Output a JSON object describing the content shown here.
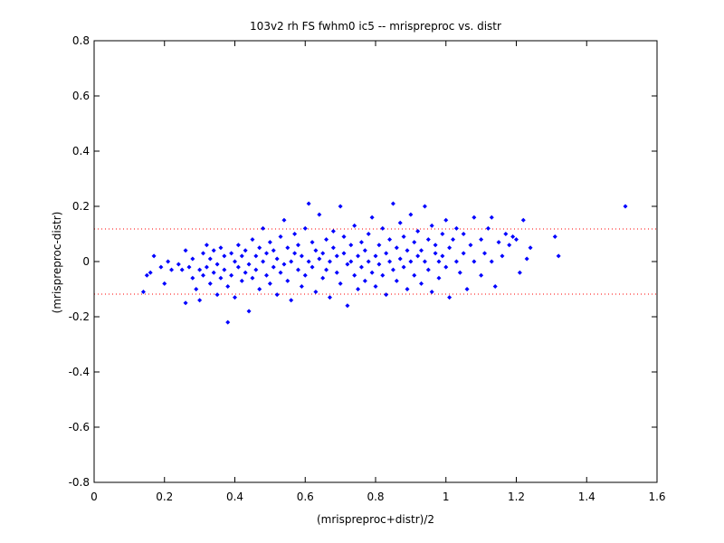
{
  "chart_data": {
    "type": "scatter",
    "title": "103v2 rh FS fwhm0 ic5 -- mrispreproc vs. distr",
    "xlabel": "(mrispreproc+distr)/2",
    "ylabel": "(mrispreproc-distr)",
    "xlim": [
      0,
      1.6
    ],
    "ylim": [
      -0.8,
      0.8
    ],
    "x_ticks": [
      "0",
      "0.2",
      "0.4",
      "0.6",
      "0.8",
      "1",
      "1.2",
      "1.4",
      "1.6"
    ],
    "y_ticks": [
      "-0.8",
      "-0.6",
      "-0.4",
      "-0.2",
      "0",
      "0.2",
      "0.4",
      "0.6",
      "0.8"
    ],
    "grid": false,
    "marker_color": "#0000ff",
    "reference_line_color": "#ff0000",
    "reference_lines": [
      0.118,
      -0.118
    ],
    "series": [
      {
        "points": [
          [
            0.14,
            -0.11
          ],
          [
            0.15,
            -0.05
          ],
          [
            0.16,
            -0.04
          ],
          [
            0.17,
            0.02
          ],
          [
            0.19,
            -0.02
          ],
          [
            0.2,
            -0.08
          ],
          [
            0.21,
            0.0
          ],
          [
            0.22,
            -0.03
          ],
          [
            0.24,
            -0.01
          ],
          [
            0.25,
            -0.03
          ],
          [
            0.26,
            0.04
          ],
          [
            0.26,
            -0.15
          ],
          [
            0.27,
            -0.02
          ],
          [
            0.28,
            -0.06
          ],
          [
            0.28,
            0.01
          ],
          [
            0.29,
            -0.1
          ],
          [
            0.3,
            -0.14
          ],
          [
            0.3,
            -0.03
          ],
          [
            0.31,
            0.03
          ],
          [
            0.31,
            -0.05
          ],
          [
            0.32,
            0.06
          ],
          [
            0.32,
            -0.02
          ],
          [
            0.33,
            -0.08
          ],
          [
            0.33,
            0.01
          ],
          [
            0.34,
            -0.04
          ],
          [
            0.34,
            0.04
          ],
          [
            0.35,
            -0.12
          ],
          [
            0.35,
            -0.01
          ],
          [
            0.36,
            0.05
          ],
          [
            0.36,
            -0.06
          ],
          [
            0.37,
            0.02
          ],
          [
            0.37,
            -0.03
          ],
          [
            0.38,
            -0.22
          ],
          [
            0.38,
            -0.09
          ],
          [
            0.39,
            0.03
          ],
          [
            0.39,
            -0.05
          ],
          [
            0.4,
            0.0
          ],
          [
            0.4,
            -0.13
          ],
          [
            0.41,
            0.06
          ],
          [
            0.41,
            -0.02
          ],
          [
            0.42,
            0.02
          ],
          [
            0.42,
            -0.07
          ],
          [
            0.43,
            -0.04
          ],
          [
            0.43,
            0.04
          ],
          [
            0.44,
            -0.18
          ],
          [
            0.44,
            -0.01
          ],
          [
            0.45,
            0.08
          ],
          [
            0.45,
            -0.06
          ],
          [
            0.46,
            0.02
          ],
          [
            0.46,
            -0.03
          ],
          [
            0.47,
            -0.1
          ],
          [
            0.47,
            0.05
          ],
          [
            0.48,
            0.0
          ],
          [
            0.48,
            0.12
          ],
          [
            0.49,
            -0.05
          ],
          [
            0.49,
            0.03
          ],
          [
            0.5,
            -0.08
          ],
          [
            0.5,
            0.07
          ],
          [
            0.51,
            -0.02
          ],
          [
            0.51,
            0.04
          ],
          [
            0.52,
            -0.12
          ],
          [
            0.52,
            0.01
          ],
          [
            0.53,
            0.09
          ],
          [
            0.53,
            -0.04
          ],
          [
            0.54,
            0.15
          ],
          [
            0.54,
            -0.01
          ],
          [
            0.55,
            -0.07
          ],
          [
            0.55,
            0.05
          ],
          [
            0.56,
            0.0
          ],
          [
            0.56,
            -0.14
          ],
          [
            0.57,
            0.03
          ],
          [
            0.57,
            0.1
          ],
          [
            0.58,
            -0.03
          ],
          [
            0.58,
            0.06
          ],
          [
            0.59,
            -0.09
          ],
          [
            0.59,
            0.02
          ],
          [
            0.6,
            0.12
          ],
          [
            0.6,
            -0.05
          ],
          [
            0.61,
            0.21
          ],
          [
            0.61,
            0.0
          ],
          [
            0.62,
            -0.02
          ],
          [
            0.62,
            0.07
          ],
          [
            0.63,
            -0.11
          ],
          [
            0.63,
            0.04
          ],
          [
            0.64,
            0.01
          ],
          [
            0.64,
            0.17
          ],
          [
            0.65,
            -0.06
          ],
          [
            0.65,
            0.03
          ],
          [
            0.66,
            0.08
          ],
          [
            0.66,
            -0.03
          ],
          [
            0.67,
            0.0
          ],
          [
            0.67,
            -0.13
          ],
          [
            0.68,
            0.05
          ],
          [
            0.68,
            0.11
          ],
          [
            0.69,
            -0.04
          ],
          [
            0.69,
            0.02
          ],
          [
            0.7,
            0.2
          ],
          [
            0.7,
            -0.08
          ],
          [
            0.71,
            0.03
          ],
          [
            0.71,
            0.09
          ],
          [
            0.72,
            -0.01
          ],
          [
            0.72,
            -0.16
          ],
          [
            0.73,
            0.06
          ],
          [
            0.73,
            0.0
          ],
          [
            0.74,
            -0.05
          ],
          [
            0.74,
            0.13
          ],
          [
            0.75,
            0.02
          ],
          [
            0.75,
            -0.1
          ],
          [
            0.76,
            0.07
          ],
          [
            0.76,
            -0.02
          ],
          [
            0.77,
            0.04
          ],
          [
            0.77,
            -0.07
          ],
          [
            0.78,
            0.1
          ],
          [
            0.78,
            0.0
          ],
          [
            0.79,
            -0.04
          ],
          [
            0.79,
            0.16
          ],
          [
            0.8,
            0.02
          ],
          [
            0.8,
            -0.09
          ],
          [
            0.81,
            0.06
          ],
          [
            0.81,
            -0.01
          ],
          [
            0.82,
            0.12
          ],
          [
            0.82,
            -0.05
          ],
          [
            0.83,
            0.03
          ],
          [
            0.83,
            -0.12
          ],
          [
            0.84,
            0.08
          ],
          [
            0.84,
            0.0
          ],
          [
            0.85,
            0.21
          ],
          [
            0.85,
            -0.03
          ],
          [
            0.86,
            0.05
          ],
          [
            0.86,
            -0.07
          ],
          [
            0.87,
            0.01
          ],
          [
            0.87,
            0.14
          ],
          [
            0.88,
            -0.02
          ],
          [
            0.88,
            0.09
          ],
          [
            0.89,
            0.04
          ],
          [
            0.89,
            -0.1
          ],
          [
            0.9,
            0.17
          ],
          [
            0.9,
            0.0
          ],
          [
            0.91,
            -0.05
          ],
          [
            0.91,
            0.07
          ],
          [
            0.92,
            0.02
          ],
          [
            0.92,
            0.11
          ],
          [
            0.93,
            -0.08
          ],
          [
            0.93,
            0.04
          ],
          [
            0.94,
            0.2
          ],
          [
            0.94,
            0.0
          ],
          [
            0.95,
            -0.03
          ],
          [
            0.95,
            0.08
          ],
          [
            0.96,
            0.13
          ],
          [
            0.96,
            -0.11
          ],
          [
            0.97,
            0.03
          ],
          [
            0.97,
            0.06
          ],
          [
            0.98,
            0.0
          ],
          [
            0.98,
            -0.06
          ],
          [
            0.99,
            0.1
          ],
          [
            0.99,
            0.02
          ],
          [
            1.0,
            -0.02
          ],
          [
            1.0,
            0.15
          ],
          [
            1.01,
            0.05
          ],
          [
            1.01,
            -0.13
          ],
          [
            1.02,
            0.08
          ],
          [
            1.03,
            0.0
          ],
          [
            1.03,
            0.12
          ],
          [
            1.04,
            -0.04
          ],
          [
            1.05,
            0.03
          ],
          [
            1.05,
            0.1
          ],
          [
            1.06,
            -0.1
          ],
          [
            1.07,
            0.06
          ],
          [
            1.08,
            0.0
          ],
          [
            1.08,
            0.16
          ],
          [
            1.1,
            0.08
          ],
          [
            1.1,
            -0.05
          ],
          [
            1.11,
            0.03
          ],
          [
            1.12,
            0.12
          ],
          [
            1.13,
            0.0
          ],
          [
            1.13,
            0.16
          ],
          [
            1.14,
            -0.09
          ],
          [
            1.15,
            0.07
          ],
          [
            1.16,
            0.02
          ],
          [
            1.17,
            0.1
          ],
          [
            1.18,
            0.06
          ],
          [
            1.19,
            0.09
          ],
          [
            1.2,
            0.08
          ],
          [
            1.21,
            -0.04
          ],
          [
            1.22,
            0.15
          ],
          [
            1.23,
            0.01
          ],
          [
            1.24,
            0.05
          ],
          [
            1.31,
            0.09
          ],
          [
            1.32,
            0.02
          ],
          [
            1.51,
            0.2
          ]
        ]
      }
    ]
  }
}
